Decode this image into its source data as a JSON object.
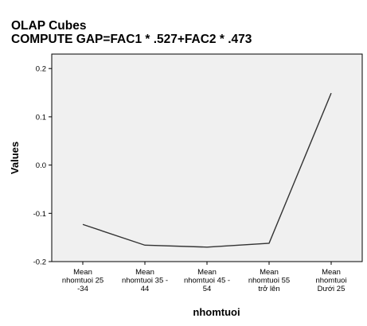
{
  "title": "OLAP Cubes",
  "subtitle": "COMPUTE GAP=FAC1 * .527+FAC2 * .473",
  "chart_data": {
    "type": "line",
    "title": "OLAP Cubes",
    "subtitle": "COMPUTE GAP=FAC1 * .527+FAC2 * .473",
    "xlabel": "nhomtuoi",
    "ylabel": "Values",
    "categories": [
      [
        "Mean",
        "nhomtuoi 25",
        "-34"
      ],
      [
        "Mean",
        "nhomtuoi 35 -",
        "44"
      ],
      [
        "Mean",
        "nhomtuoi 45 -",
        "54"
      ],
      [
        "Mean",
        "nhomtuoi 55",
        "trở lên"
      ],
      [
        "Mean",
        "nhomtuoi",
        "Dưới 25"
      ]
    ],
    "series": [
      {
        "values": [
          -0.123,
          -0.166,
          -0.17,
          -0.162,
          0.149
        ]
      }
    ],
    "ylim": [
      -0.2,
      0.23
    ],
    "yticks": [
      -0.2,
      -0.1,
      0.0,
      0.1,
      0.2
    ],
    "ytick_labels": [
      "-0.2",
      "-0.1",
      "0.0",
      "0.1",
      "0.2"
    ],
    "grid": false,
    "colors": {
      "plot_bg": "#f0f0f0",
      "line": "#333333",
      "axis": "#000000"
    }
  }
}
